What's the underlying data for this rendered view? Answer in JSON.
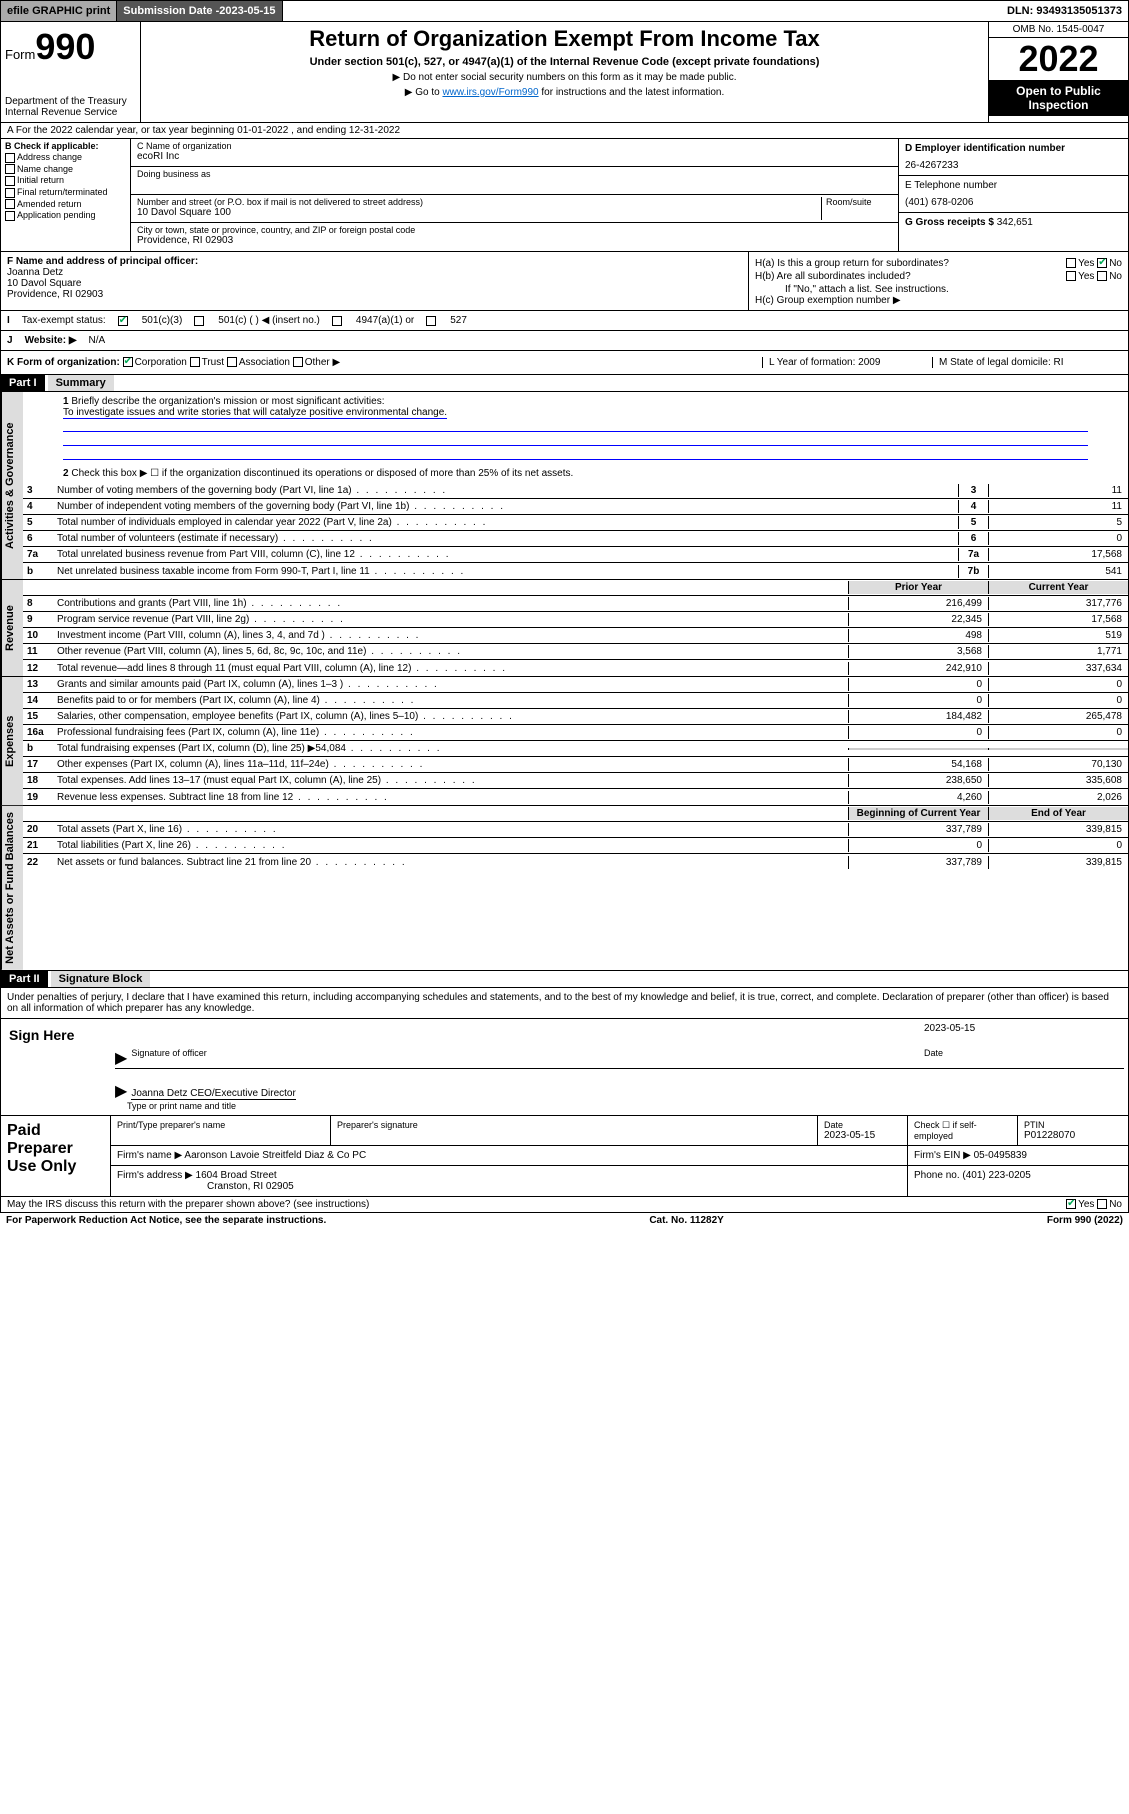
{
  "topbar": {
    "efile": "efile GRAPHIC print",
    "sub_label": "Submission Date - ",
    "sub_date": "2023-05-15",
    "dln": "DLN: 93493135051373"
  },
  "header": {
    "form_word": "Form",
    "form_num": "990",
    "dept": "Department of the Treasury",
    "irs": "Internal Revenue Service",
    "title": "Return of Organization Exempt From Income Tax",
    "sub": "Under section 501(c), 527, or 4947(a)(1) of the Internal Revenue Code (except private foundations)",
    "note1": "▶ Do not enter social security numbers on this form as it may be made public.",
    "note2_pre": "▶ Go to ",
    "note2_link": "www.irs.gov/Form990",
    "note2_post": " for instructions and the latest information.",
    "omb": "OMB No. 1545-0047",
    "year": "2022",
    "open": "Open to Public Inspection"
  },
  "row_a": "A For the 2022 calendar year, or tax year beginning 01-01-2022   , and ending 12-31-2022",
  "col_b": {
    "title": "B Check if applicable:",
    "items": [
      "Address change",
      "Name change",
      "Initial return",
      "Final return/terminated",
      "Amended return",
      "Application pending"
    ]
  },
  "col_c": {
    "name_label": "C Name of organization",
    "name": "ecoRI Inc",
    "dba_label": "Doing business as",
    "addr_label": "Number and street (or P.O. box if mail is not delivered to street address)",
    "room_label": "Room/suite",
    "addr": "10 Davol Square 100",
    "city_label": "City or town, state or province, country, and ZIP or foreign postal code",
    "city": "Providence, RI  02903"
  },
  "col_d": {
    "ein_label": "D Employer identification number",
    "ein": "26-4267233",
    "tel_label": "E Telephone number",
    "tel": "(401) 678-0206",
    "gross_label": "G Gross receipts $",
    "gross": "342,651"
  },
  "col_f": {
    "label": "F Name and address of principal officer:",
    "name": "Joanna Detz",
    "addr1": "10 Davol Square",
    "addr2": "Providence, RI  02903"
  },
  "col_h": {
    "a": "H(a)  Is this a group return for subordinates?",
    "b": "H(b)  Are all subordinates included?",
    "b_note": "If \"No,\" attach a list. See instructions.",
    "c": "H(c)  Group exemption number ▶"
  },
  "row_i": {
    "label": "Tax-exempt status:",
    "opts": [
      "501(c)(3)",
      "501(c) (  ) ◀ (insert no.)",
      "4947(a)(1) or",
      "527"
    ]
  },
  "row_j": {
    "label": "Website: ▶",
    "val": "N/A"
  },
  "row_k": {
    "label": "K Form of organization:",
    "opts": [
      "Corporation",
      "Trust",
      "Association",
      "Other ▶"
    ],
    "l": "L Year of formation: 2009",
    "m": "M State of legal domicile: RI"
  },
  "part1": {
    "header": "Part I",
    "title": "Summary",
    "line1_label": "Briefly describe the organization's mission or most significant activities:",
    "mission": "To investigate issues and write stories that will catalyze positive environmental change.",
    "line2": "Check this box ▶ ☐  if the organization discontinued its operations or disposed of more than 25% of its net assets.",
    "lines_gov": [
      {
        "n": "3",
        "d": "Number of voting members of the governing body (Part VI, line 1a)",
        "v": "11"
      },
      {
        "n": "4",
        "d": "Number of independent voting members of the governing body (Part VI, line 1b)",
        "v": "11"
      },
      {
        "n": "5",
        "d": "Total number of individuals employed in calendar year 2022 (Part V, line 2a)",
        "v": "5"
      },
      {
        "n": "6",
        "d": "Total number of volunteers (estimate if necessary)",
        "v": "0"
      },
      {
        "n": "7a",
        "d": "Total unrelated business revenue from Part VIII, column (C), line 12",
        "v": "17,568"
      },
      {
        "n": "b",
        "d": "Net unrelated business taxable income from Form 990-T, Part I, line 11",
        "bn": "7b",
        "v": "541"
      }
    ],
    "rev_header": {
      "c1": "Prior Year",
      "c2": "Current Year"
    },
    "lines_rev": [
      {
        "n": "8",
        "d": "Contributions and grants (Part VIII, line 1h)",
        "c1": "216,499",
        "c2": "317,776"
      },
      {
        "n": "9",
        "d": "Program service revenue (Part VIII, line 2g)",
        "c1": "22,345",
        "c2": "17,568"
      },
      {
        "n": "10",
        "d": "Investment income (Part VIII, column (A), lines 3, 4, and 7d )",
        "c1": "498",
        "c2": "519"
      },
      {
        "n": "11",
        "d": "Other revenue (Part VIII, column (A), lines 5, 6d, 8c, 9c, 10c, and 11e)",
        "c1": "3,568",
        "c2": "1,771"
      },
      {
        "n": "12",
        "d": "Total revenue—add lines 8 through 11 (must equal Part VIII, column (A), line 12)",
        "c1": "242,910",
        "c2": "337,634"
      }
    ],
    "lines_exp": [
      {
        "n": "13",
        "d": "Grants and similar amounts paid (Part IX, column (A), lines 1–3 )",
        "c1": "0",
        "c2": "0"
      },
      {
        "n": "14",
        "d": "Benefits paid to or for members (Part IX, column (A), line 4)",
        "c1": "0",
        "c2": "0"
      },
      {
        "n": "15",
        "d": "Salaries, other compensation, employee benefits (Part IX, column (A), lines 5–10)",
        "c1": "184,482",
        "c2": "265,478"
      },
      {
        "n": "16a",
        "d": "Professional fundraising fees (Part IX, column (A), line 11e)",
        "c1": "0",
        "c2": "0"
      },
      {
        "n": "b",
        "d": "Total fundraising expenses (Part IX, column (D), line 25) ▶54,084",
        "c1": "",
        "c2": "",
        "shade": true
      },
      {
        "n": "17",
        "d": "Other expenses (Part IX, column (A), lines 11a–11d, 11f–24e)",
        "c1": "54,168",
        "c2": "70,130"
      },
      {
        "n": "18",
        "d": "Total expenses. Add lines 13–17 (must equal Part IX, column (A), line 25)",
        "c1": "238,650",
        "c2": "335,608"
      },
      {
        "n": "19",
        "d": "Revenue less expenses. Subtract line 18 from line 12",
        "c1": "4,260",
        "c2": "2,026"
      }
    ],
    "net_header": {
      "c1": "Beginning of Current Year",
      "c2": "End of Year"
    },
    "lines_net": [
      {
        "n": "20",
        "d": "Total assets (Part X, line 16)",
        "c1": "337,789",
        "c2": "339,815"
      },
      {
        "n": "21",
        "d": "Total liabilities (Part X, line 26)",
        "c1": "0",
        "c2": "0"
      },
      {
        "n": "22",
        "d": "Net assets or fund balances. Subtract line 21 from line 20",
        "c1": "337,789",
        "c2": "339,815"
      }
    ],
    "vert_labels": {
      "gov": "Activities & Governance",
      "rev": "Revenue",
      "exp": "Expenses",
      "net": "Net Assets or Fund Balances"
    }
  },
  "part2": {
    "header": "Part II",
    "title": "Signature Block",
    "decl": "Under penalties of perjury, I declare that I have examined this return, including accompanying schedules and statements, and to the best of my knowledge and belief, it is true, correct, and complete. Declaration of preparer (other than officer) is based on all information of which preparer has any knowledge.",
    "sign_here": "Sign Here",
    "sig_officer": "Signature of officer",
    "sig_date_label": "Date",
    "sig_date": "2023-05-15",
    "sig_name": "Joanna Detz CEO/Executive Director",
    "sig_name_label": "Type or print name and title"
  },
  "prep": {
    "title": "Paid Preparer Use Only",
    "h": {
      "name": "Print/Type preparer's name",
      "sig": "Preparer's signature",
      "date": "Date",
      "date_v": "2023-05-15",
      "check": "Check ☐ if self-employed",
      "ptin": "PTIN",
      "ptin_v": "P01228070"
    },
    "firm_name_label": "Firm's name   ▶",
    "firm_name": "Aaronson Lavoie Streitfeld Diaz & Co PC",
    "firm_ein_label": "Firm's EIN ▶",
    "firm_ein": "05-0495839",
    "firm_addr_label": "Firm's address ▶",
    "firm_addr1": "1604 Broad Street",
    "firm_addr2": "Cranston, RI  02905",
    "phone_label": "Phone no.",
    "phone": "(401) 223-0205"
  },
  "discuss": "May the IRS discuss this return with the preparer shown above? (see instructions)",
  "footer": {
    "left": "For Paperwork Reduction Act Notice, see the separate instructions.",
    "mid": "Cat. No. 11282Y",
    "right": "Form 990 (2022)"
  },
  "yesno": {
    "yes": "Yes",
    "no": "No"
  }
}
